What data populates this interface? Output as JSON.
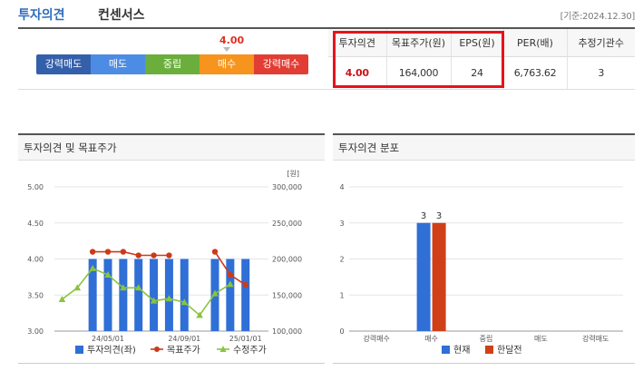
{
  "header": {
    "title_main": "투자의견",
    "title_sub": "컨센서스",
    "date": "[기준:2024.12.30]"
  },
  "opinion_scale": {
    "current_value": "4.00",
    "current_position": 4.0,
    "segments": [
      "강력매도",
      "매도",
      "중립",
      "매수",
      "강력매수"
    ]
  },
  "consensus_table": {
    "headers": [
      "투자의견",
      "목표주가(원)",
      "EPS(원)",
      "PER(배)",
      "추정기관수"
    ],
    "row": [
      "4.00",
      "164,000",
      "24",
      "6,763.62",
      "3"
    ]
  },
  "left_panel": {
    "title": "투자의견 및 목표주가"
  },
  "right_panel": {
    "title": "투자의견 분포"
  },
  "colors": {
    "accent": "#2f6bbd",
    "bar_blue": "#2f6fd6",
    "target_red": "#cc3a1a",
    "adjusted_green": "#8ac43f",
    "prev_red": "#d04018",
    "highlight": "#e8121a"
  },
  "chart_data": [
    {
      "type": "bar+line",
      "left_axis": {
        "ticks": [
          "5.00",
          "4.50",
          "4.00",
          "3.50",
          "3.00"
        ],
        "ylim": [
          3.0,
          5.0
        ]
      },
      "right_axis": {
        "unit": "[원]",
        "ticks": [
          "300,000",
          "250,000",
          "200,000",
          "150,000",
          "100,000"
        ],
        "ylim": [
          100000,
          300000
        ]
      },
      "x_tick_labels": [
        "24/05/01",
        "24/09/01",
        "25/01/01"
      ],
      "x_tick_index": [
        3,
        8,
        12
      ],
      "slots": 14,
      "opinion_bars": [
        null,
        null,
        4.0,
        4.0,
        4.0,
        4.0,
        4.0,
        4.0,
        4.0,
        null,
        4.0,
        4.0,
        4.0,
        null
      ],
      "target_price": [
        null,
        null,
        210000,
        210000,
        210000,
        205000,
        205000,
        205000,
        null,
        null,
        210000,
        178000,
        164000,
        null
      ],
      "adjusted_price": [
        144000,
        160000,
        187000,
        178000,
        160000,
        160000,
        142000,
        145000,
        140000,
        122000,
        152000,
        165000,
        null,
        null
      ],
      "legend": [
        "투자의견(좌)",
        "목표주가",
        "수정주가"
      ]
    },
    {
      "type": "bar",
      "categories": [
        "강력매수",
        "매수",
        "중립",
        "매도",
        "강력매도"
      ],
      "series": [
        {
          "name": "현재",
          "values": [
            0,
            3,
            0,
            0,
            0
          ]
        },
        {
          "name": "한달전",
          "values": [
            0,
            3,
            0,
            0,
            0
          ]
        }
      ],
      "ylim": [
        0,
        4
      ],
      "y_ticks": [
        "4",
        "3",
        "2",
        "1",
        "0"
      ],
      "data_labels": [
        "3",
        "3"
      ]
    }
  ]
}
